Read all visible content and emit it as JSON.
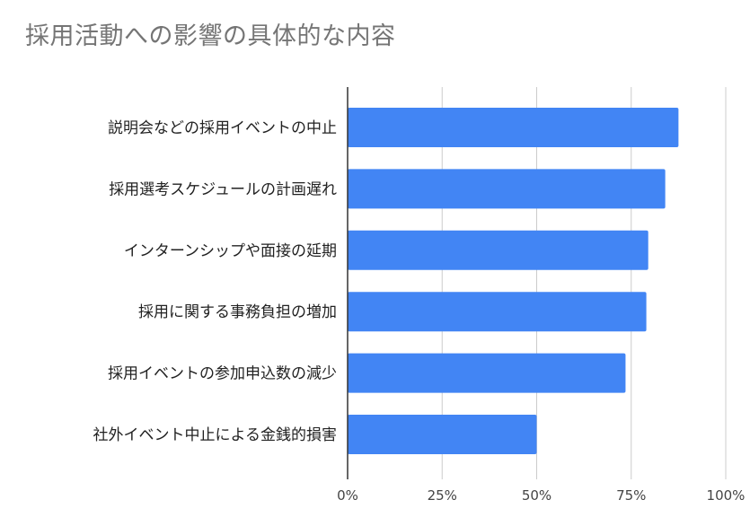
{
  "chart_data": {
    "type": "bar",
    "orientation": "horizontal",
    "title": "採用活動への影響の具体的な内容",
    "categories": [
      "説明会などの採用イベントの中止",
      "採用選考スケジュールの計画遅れ",
      "インターンシップや面接の延期",
      "採用に関する事務負担の増加",
      "採用イベントの参加申込数の減少",
      "社外イベント中止による金銭的損害"
    ],
    "values": [
      87.5,
      84,
      79.5,
      79,
      73.5,
      50
    ],
    "xlim": [
      0,
      100
    ],
    "ticks": [
      "0%",
      "25%",
      "50%",
      "75%",
      "100%"
    ],
    "grid": true,
    "legend": "none",
    "bar_color": "#4285f4",
    "grid_color": "#cccccc",
    "axis_color": "#333333"
  }
}
